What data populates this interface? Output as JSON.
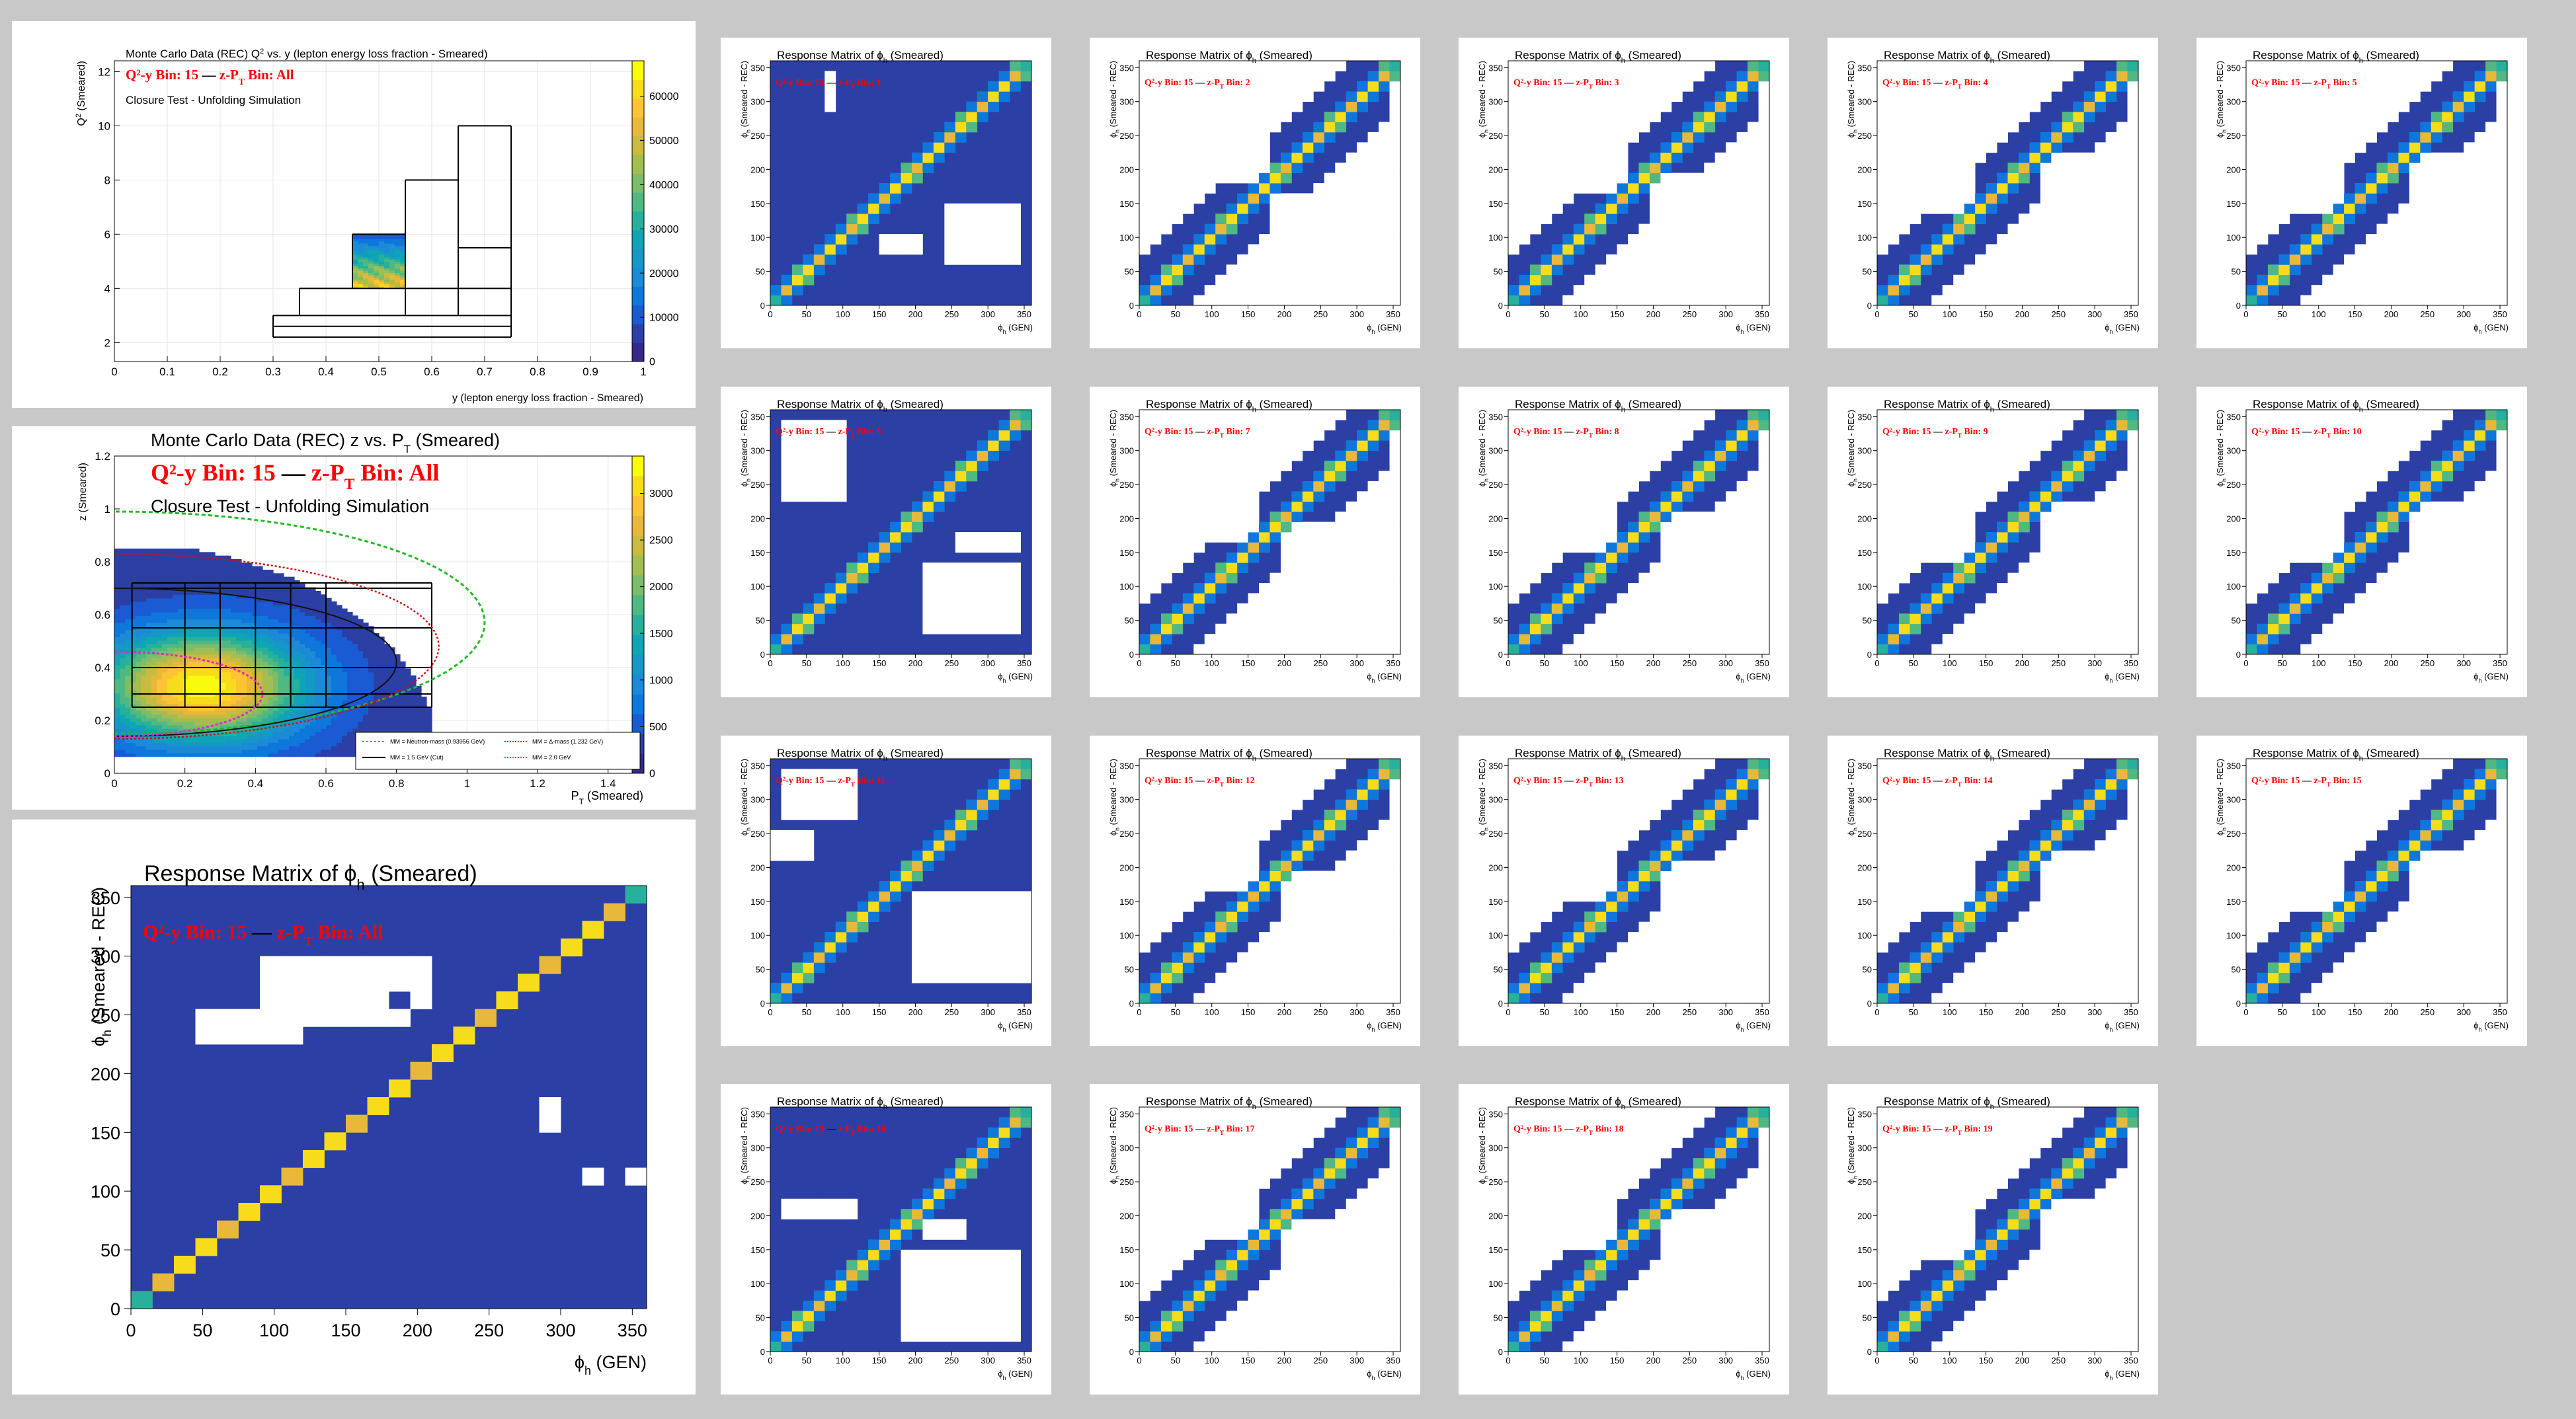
{
  "colors": {
    "background": "#c8c8c8",
    "panel": "#ffffff",
    "bin_edge": "#000000",
    "annotation": "#ff0000",
    "empty": "#ffffff"
  },
  "palette": [
    "#352a87",
    "#2c3fa5",
    "#1a5bd4",
    "#0f77db",
    "#1c8ad6",
    "#1598c6",
    "#0fa5b4",
    "#27b09c",
    "#4fb883",
    "#7bbd6a",
    "#a3bd53",
    "#c8bb3f",
    "#e8b83b",
    "#fcc434",
    "#f6dc1a",
    "#f9fb0e"
  ],
  "summary_plots": [
    {
      "chart_data": {
        "type": "heatmap",
        "title": "Monte Carlo Data (REC) Q",
        "title_sup": "2",
        "title_tail": " vs. y (lepton energy loss fraction - Smeared)",
        "annotation_bin": "Q²-y Bin: 15",
        "annotation_sep": "—",
        "annotation_zpt": "z-P",
        "annotation_zpt_sub": "T",
        "annotation_zpt_tail": " Bin: All",
        "subtitle": "Closure Test - Unfolding Simulation",
        "xlabel": "y (lepton energy loss fraction - Smeared)",
        "ylabel": "Q",
        "ylabel_sup": "2",
        "ylabel_tail": " (Smeared)",
        "xlim": [
          0,
          1
        ],
        "ylim": [
          1.3,
          12.4
        ],
        "x_ticks": [
          "0",
          "0.1",
          "0.2",
          "0.3",
          "0.4",
          "0.5",
          "0.6",
          "0.7",
          "0.8",
          "0.9",
          "1"
        ],
        "x_tick_values": [
          0,
          0.1,
          0.2,
          0.3,
          0.4,
          0.5,
          0.6,
          0.7,
          0.8,
          0.9,
          1
        ],
        "y_ticks": [
          "2",
          "4",
          "6",
          "8",
          "10",
          "12"
        ],
        "y_tick_values": [
          2,
          4,
          6,
          8,
          10,
          12
        ],
        "zlim": [
          0,
          68000
        ],
        "z_ticks": [
          "0",
          "10000",
          "20000",
          "30000",
          "40000",
          "50000",
          "60000"
        ],
        "z_tick_values": [
          0,
          10000,
          20000,
          30000,
          40000,
          50000,
          60000
        ],
        "filled_region": {
          "x": [
            0.45,
            0.55
          ],
          "y": [
            4.0,
            6.0
          ],
          "z_low": 8000,
          "z_high": 64000
        },
        "bin_boundaries": [
          [
            [
              0.3,
              2.2
            ],
            [
              0.75,
              2.2
            ]
          ],
          [
            [
              0.3,
              2.6
            ],
            [
              0.75,
              2.6
            ]
          ],
          [
            [
              0.3,
              3.0
            ],
            [
              0.75,
              3.0
            ]
          ],
          [
            [
              0.3,
              2.2
            ],
            [
              0.3,
              3.0
            ]
          ],
          [
            [
              0.75,
              2.2
            ],
            [
              0.75,
              3.0
            ]
          ],
          [
            [
              0.35,
              3.0
            ],
            [
              0.35,
              4.0
            ]
          ],
          [
            [
              0.35,
              4.0
            ],
            [
              0.55,
              4.0
            ]
          ],
          [
            [
              0.45,
              4.0
            ],
            [
              0.45,
              6.0
            ]
          ],
          [
            [
              0.45,
              6.0
            ],
            [
              0.55,
              6.0
            ]
          ],
          [
            [
              0.55,
              3.0
            ],
            [
              0.55,
              8.0
            ]
          ],
          [
            [
              0.55,
              4.0
            ],
            [
              0.75,
              4.0
            ]
          ],
          [
            [
              0.55,
              8.0
            ],
            [
              0.65,
              8.0
            ]
          ],
          [
            [
              0.65,
              3.0
            ],
            [
              0.65,
              10.0
            ]
          ],
          [
            [
              0.65,
              5.5
            ],
            [
              0.75,
              5.5
            ]
          ],
          [
            [
              0.65,
              10.0
            ],
            [
              0.75,
              10.0
            ]
          ],
          [
            [
              0.75,
              3.0
            ],
            [
              0.75,
              10.0
            ]
          ]
        ]
      }
    },
    {
      "chart_data": {
        "type": "heatmap",
        "title": "Monte Carlo Data (REC) z vs. P",
        "title_sub": "T",
        "title_tail": " (Smeared)",
        "annotation_bin": "Q²-y Bin: 15",
        "annotation_sep": "—",
        "annotation_zpt": "z-P",
        "annotation_zpt_sub": "T",
        "annotation_zpt_tail": " Bin: All",
        "subtitle": "Closure Test - Unfolding Simulation",
        "xlabel": "P",
        "xlabel_sub": "T",
        "xlabel_tail": " (Smeared)",
        "ylabel": "z (Smeared)",
        "xlim": [
          0,
          1.5
        ],
        "ylim": [
          0,
          1.2
        ],
        "x_ticks": [
          "0",
          "0.2",
          "0.4",
          "0.6",
          "0.8",
          "1",
          "1.2",
          "1.4"
        ],
        "x_tick_values": [
          0,
          0.2,
          0.4,
          0.6,
          0.8,
          1,
          1.2,
          1.4
        ],
        "y_ticks": [
          "0",
          "0.2",
          "0.4",
          "0.6",
          "0.8",
          "1",
          "1.2"
        ],
        "y_tick_values": [
          0,
          0.2,
          0.4,
          0.6,
          0.8,
          1,
          1.2
        ],
        "zlim": [
          0,
          3400
        ],
        "z_ticks": [
          "0",
          "500",
          "1000",
          "1500",
          "2000",
          "2500",
          "3000"
        ],
        "z_tick_values": [
          0,
          500,
          1000,
          1500,
          2000,
          2500,
          3000
        ],
        "legend": [
          {
            "label": "MM = Neutron-mass (0.93956 GeV)",
            "color": "#22bb22",
            "dash": "3,3"
          },
          {
            "label": "MM = Δ-mass (1.232 GeV)",
            "color": "#cc1111",
            "dash": "2,2"
          },
          {
            "label": "MM = 1.5 GeV (Cut)",
            "color": "#111111",
            "dash": ""
          },
          {
            "label": "MM = 2.0 GeV",
            "color": "#ee22cc",
            "dash": "2,2"
          }
        ],
        "z_edges": [
          0.25,
          0.3,
          0.4,
          0.55,
          0.7,
          0.72
        ],
        "pt_edges": [
          0.05,
          0.2,
          0.3,
          0.4,
          0.5,
          0.6,
          0.9
        ]
      }
    }
  ],
  "big_plot": {
    "chart_data": {
      "type": "heatmap",
      "title": "Response Matrix of",
      "title_phi": "ϕ",
      "title_sub": "h",
      "title_tail": " (Smeared)",
      "annotation_bin": "Q²-y Bin: 15",
      "annotation_sep": "—",
      "annotation_zpt": "z-P",
      "annotation_zpt_sub": "T",
      "annotation_zpt_tail": " Bin: All",
      "xlabel": "ϕ",
      "xlabel_sub": "h",
      "xlabel_tail": " (GEN)",
      "ylabel": "ϕ",
      "ylabel_sub": "h",
      "ylabel_tail": " (Smeared - REC)",
      "xlim": [
        0,
        360
      ],
      "ylim": [
        0,
        360
      ],
      "x_ticks": [
        "0",
        "50",
        "100",
        "150",
        "200",
        "250",
        "300",
        "350"
      ],
      "y_ticks": [
        "0",
        "50",
        "100",
        "150",
        "200",
        "250",
        "300",
        "350"
      ],
      "tick_values": [
        0,
        50,
        100,
        150,
        200,
        250,
        300,
        350
      ],
      "n_bins": 24,
      "empty_bins": [
        [
          6,
          19
        ],
        [
          6,
          18
        ],
        [
          7,
          18
        ],
        [
          9,
          18
        ],
        [
          9,
          19
        ],
        [
          8,
          17
        ],
        [
          9,
          17
        ],
        [
          10,
          17
        ],
        [
          11,
          17
        ],
        [
          11,
          18
        ],
        [
          12,
          19
        ],
        [
          13,
          19
        ],
        [
          13,
          18
        ],
        [
          3,
          16
        ],
        [
          3,
          15
        ],
        [
          5,
          16
        ],
        [
          5,
          15
        ],
        [
          6,
          15
        ],
        [
          7,
          15
        ],
        [
          6,
          16
        ],
        [
          13,
          17
        ],
        [
          8,
          16
        ],
        [
          9,
          16
        ],
        [
          10,
          16
        ],
        [
          11,
          16
        ],
        [
          12,
          16
        ],
        [
          4,
          16
        ],
        [
          4,
          15
        ],
        [
          12,
          18
        ],
        [
          10,
          18
        ],
        [
          11,
          19
        ],
        [
          10,
          19
        ],
        [
          7,
          19
        ],
        [
          8,
          19
        ],
        [
          7,
          16
        ],
        [
          7,
          17
        ],
        [
          6,
          17
        ],
        [
          8,
          18
        ],
        [
          19,
          11
        ],
        [
          19,
          10
        ],
        [
          21,
          7
        ],
        [
          23,
          7
        ]
      ],
      "empty_outside_diag": false
    }
  },
  "small_plots": [
    {
      "zpt_bin": "1",
      "empty_blobs": [
        [
          0.2,
          0.25,
          0.8,
          0.96
        ],
        [
          0.66,
          0.95,
          0.15,
          0.4
        ],
        [
          0.42,
          0.6,
          0.2,
          0.28
        ]
      ]
    },
    {
      "zpt_bin": "2",
      "empty_blobs": [
        [
          0.0,
          0.5,
          0.5,
          1.0
        ],
        [
          0.5,
          1.0,
          0.0,
          0.45
        ],
        [
          0.95,
          1.0,
          0.0,
          1.0
        ]
      ]
    },
    {
      "zpt_bin": "3",
      "empty_blobs": [
        [
          0.0,
          0.45,
          0.45,
          1.0
        ],
        [
          0.55,
          1.0,
          0.0,
          0.55
        ],
        [
          0.95,
          1.0,
          0.0,
          1.0
        ]
      ]
    },
    {
      "zpt_bin": "4",
      "empty_blobs": [
        [
          0.0,
          0.38,
          0.38,
          1.0
        ],
        [
          0.62,
          1.0,
          0.0,
          0.62
        ],
        [
          0.95,
          1.0,
          0.0,
          1.0
        ]
      ]
    },
    {
      "zpt_bin": "5",
      "empty_blobs": [
        [
          0.0,
          0.36,
          0.36,
          1.0
        ],
        [
          0.64,
          1.0,
          0.0,
          0.64
        ],
        [
          0.96,
          1.0,
          0.0,
          1.0
        ]
      ]
    },
    {
      "zpt_bin": "6",
      "empty_blobs": [
        [
          0.05,
          0.3,
          0.62,
          0.95
        ],
        [
          0.6,
          0.95,
          0.1,
          0.36
        ],
        [
          0.72,
          0.95,
          0.4,
          0.5
        ]
      ]
    },
    {
      "zpt_bin": "7",
      "empty_blobs": [
        [
          0.0,
          0.45,
          0.45,
          1.0
        ],
        [
          0.55,
          1.0,
          0.0,
          0.55
        ],
        [
          0.95,
          1.0,
          0.0,
          1.0
        ]
      ]
    },
    {
      "zpt_bin": "8",
      "empty_blobs": [
        [
          0.0,
          0.4,
          0.4,
          1.0
        ],
        [
          0.6,
          1.0,
          0.0,
          0.6
        ],
        [
          0.95,
          1.0,
          0.0,
          1.0
        ]
      ]
    },
    {
      "zpt_bin": "9",
      "empty_blobs": [
        [
          0.0,
          0.38,
          0.38,
          1.0
        ],
        [
          0.62,
          1.0,
          0.0,
          0.62
        ],
        [
          0.95,
          1.0,
          0.0,
          1.0
        ]
      ]
    },
    {
      "zpt_bin": "10",
      "empty_blobs": [
        [
          0.0,
          0.36,
          0.36,
          1.0
        ],
        [
          0.64,
          1.0,
          0.0,
          0.64
        ],
        [
          0.96,
          1.0,
          0.0,
          1.0
        ]
      ]
    },
    {
      "zpt_bin": "11",
      "empty_blobs": [
        [
          0.05,
          0.35,
          0.75,
          0.95
        ],
        [
          0.55,
          1.0,
          0.08,
          0.45
        ],
        [
          0.0,
          0.15,
          0.6,
          0.7
        ]
      ]
    },
    {
      "zpt_bin": "12",
      "empty_blobs": [
        [
          0.0,
          0.45,
          0.45,
          1.0
        ],
        [
          0.55,
          1.0,
          0.0,
          0.55
        ],
        [
          0.95,
          1.0,
          0.0,
          1.0
        ]
      ]
    },
    {
      "zpt_bin": "13",
      "empty_blobs": [
        [
          0.0,
          0.4,
          0.4,
          1.0
        ],
        [
          0.6,
          1.0,
          0.0,
          0.6
        ],
        [
          0.95,
          1.0,
          0.0,
          1.0
        ]
      ]
    },
    {
      "zpt_bin": "14",
      "empty_blobs": [
        [
          0.0,
          0.38,
          0.38,
          1.0
        ],
        [
          0.62,
          1.0,
          0.0,
          0.62
        ],
        [
          0.95,
          1.0,
          0.0,
          1.0
        ]
      ]
    },
    {
      "zpt_bin": "15",
      "empty_blobs": [
        [
          0.0,
          0.36,
          0.36,
          1.0
        ],
        [
          0.64,
          1.0,
          0.0,
          0.64
        ],
        [
          0.96,
          1.0,
          0.0,
          1.0
        ]
      ]
    },
    {
      "zpt_bin": "16",
      "empty_blobs": [
        [
          0.05,
          0.35,
          0.55,
          0.62
        ],
        [
          0.5,
          0.95,
          0.05,
          0.42
        ],
        [
          0.58,
          0.75,
          0.45,
          0.55
        ]
      ]
    },
    {
      "zpt_bin": "17",
      "empty_blobs": [
        [
          0.0,
          0.45,
          0.45,
          1.0
        ],
        [
          0.55,
          1.0,
          0.0,
          0.55
        ],
        [
          0.95,
          1.0,
          0.0,
          1.0
        ]
      ]
    },
    {
      "zpt_bin": "18",
      "empty_blobs": [
        [
          0.0,
          0.4,
          0.4,
          1.0
        ],
        [
          0.6,
          1.0,
          0.0,
          0.6
        ],
        [
          0.95,
          1.0,
          0.0,
          1.0
        ]
      ]
    },
    {
      "zpt_bin": "19",
      "empty_blobs": [
        [
          0.0,
          0.38,
          0.38,
          1.0
        ],
        [
          0.62,
          1.0,
          0.0,
          0.62
        ],
        [
          0.95,
          1.0,
          0.0,
          1.0
        ]
      ]
    }
  ],
  "small_plot_text": {
    "title": "Response Matrix of",
    "title_phi": "ϕ",
    "title_sub": "h",
    "title_tail": " (Smeared)",
    "annotation_bin": "Q²-y Bin: 15",
    "annotation_sep": "—",
    "annotation_zpt": "z-P",
    "annotation_zpt_sub": "T",
    "annotation_zpt_tail": " Bin: ",
    "xlabel": "ϕ",
    "xlabel_sub": "h",
    "xlabel_tail": " (GEN)",
    "ylabel": "ϕ",
    "ylabel_sub": "h",
    "ylabel_tail": " (Smeared - REC)",
    "x_ticks": [
      "0",
      "50",
      "100",
      "150",
      "200",
      "250",
      "300",
      "350"
    ],
    "y_ticks": [
      "0",
      "50",
      "100",
      "150",
      "200",
      "250",
      "300",
      "350"
    ]
  }
}
